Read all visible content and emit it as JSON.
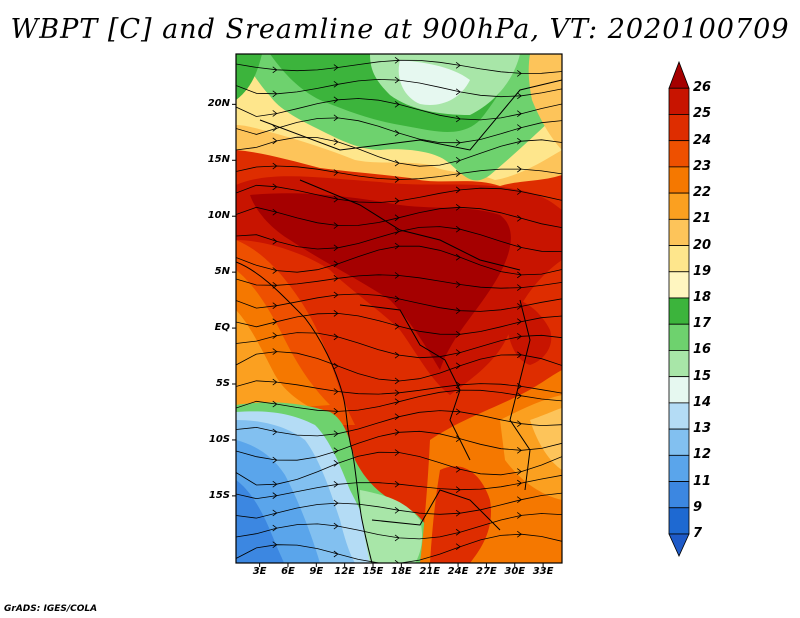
{
  "title": "WBPT [C] and Sreamline at 900hPa, VT: 2020100709",
  "credit": "GrADS: IGES/COLA",
  "map": {
    "lat_range": [
      -21,
      24.5
    ],
    "lon_range": [
      0.5,
      35
    ],
    "lat_ticks": [
      {
        "value": 20,
        "label": "20N"
      },
      {
        "value": 15,
        "label": "15N"
      },
      {
        "value": 10,
        "label": "10N"
      },
      {
        "value": 5,
        "label": "5N"
      },
      {
        "value": 0,
        "label": "EQ"
      },
      {
        "value": -5,
        "label": "5S"
      },
      {
        "value": -10,
        "label": "10S"
      },
      {
        "value": -15,
        "label": "15S"
      }
    ],
    "lon_ticks": [
      {
        "value": 3,
        "label": "3E"
      },
      {
        "value": 6,
        "label": "6E"
      },
      {
        "value": 9,
        "label": "9E"
      },
      {
        "value": 12,
        "label": "12E"
      },
      {
        "value": 15,
        "label": "15E"
      },
      {
        "value": 18,
        "label": "18E"
      },
      {
        "value": 21,
        "label": "21E"
      },
      {
        "value": 24,
        "label": "24E"
      },
      {
        "value": 27,
        "label": "27E"
      },
      {
        "value": 30,
        "label": "30E"
      },
      {
        "value": 33,
        "label": "33E"
      }
    ]
  },
  "colorbar": {
    "levels": [
      {
        "label": "26",
        "color": "#a50000"
      },
      {
        "label": "25",
        "color": "#c81400"
      },
      {
        "label": "24",
        "color": "#de2d00"
      },
      {
        "label": "23",
        "color": "#ee5000"
      },
      {
        "label": "22",
        "color": "#f57800"
      },
      {
        "label": "21",
        "color": "#fba020"
      },
      {
        "label": "20",
        "color": "#fdc45a"
      },
      {
        "label": "19",
        "color": "#fee68c"
      },
      {
        "label": "18",
        "color": "#fff6c0"
      },
      {
        "label": "17",
        "color": "#3cb43c"
      },
      {
        "label": "16",
        "color": "#6ed26e"
      },
      {
        "label": "15",
        "color": "#a8e6a8"
      },
      {
        "label": "14",
        "color": "#e6f8f0"
      },
      {
        "label": "13",
        "color": "#b4dcf5"
      },
      {
        "label": "12",
        "color": "#82c0f0"
      },
      {
        "label": "11",
        "color": "#5aa5eb"
      },
      {
        "label": "9",
        "color": "#3c87e1"
      },
      {
        "label": "7",
        "color": "#1e69d2"
      }
    ],
    "bottom_color": "#1e5ac8"
  }
}
